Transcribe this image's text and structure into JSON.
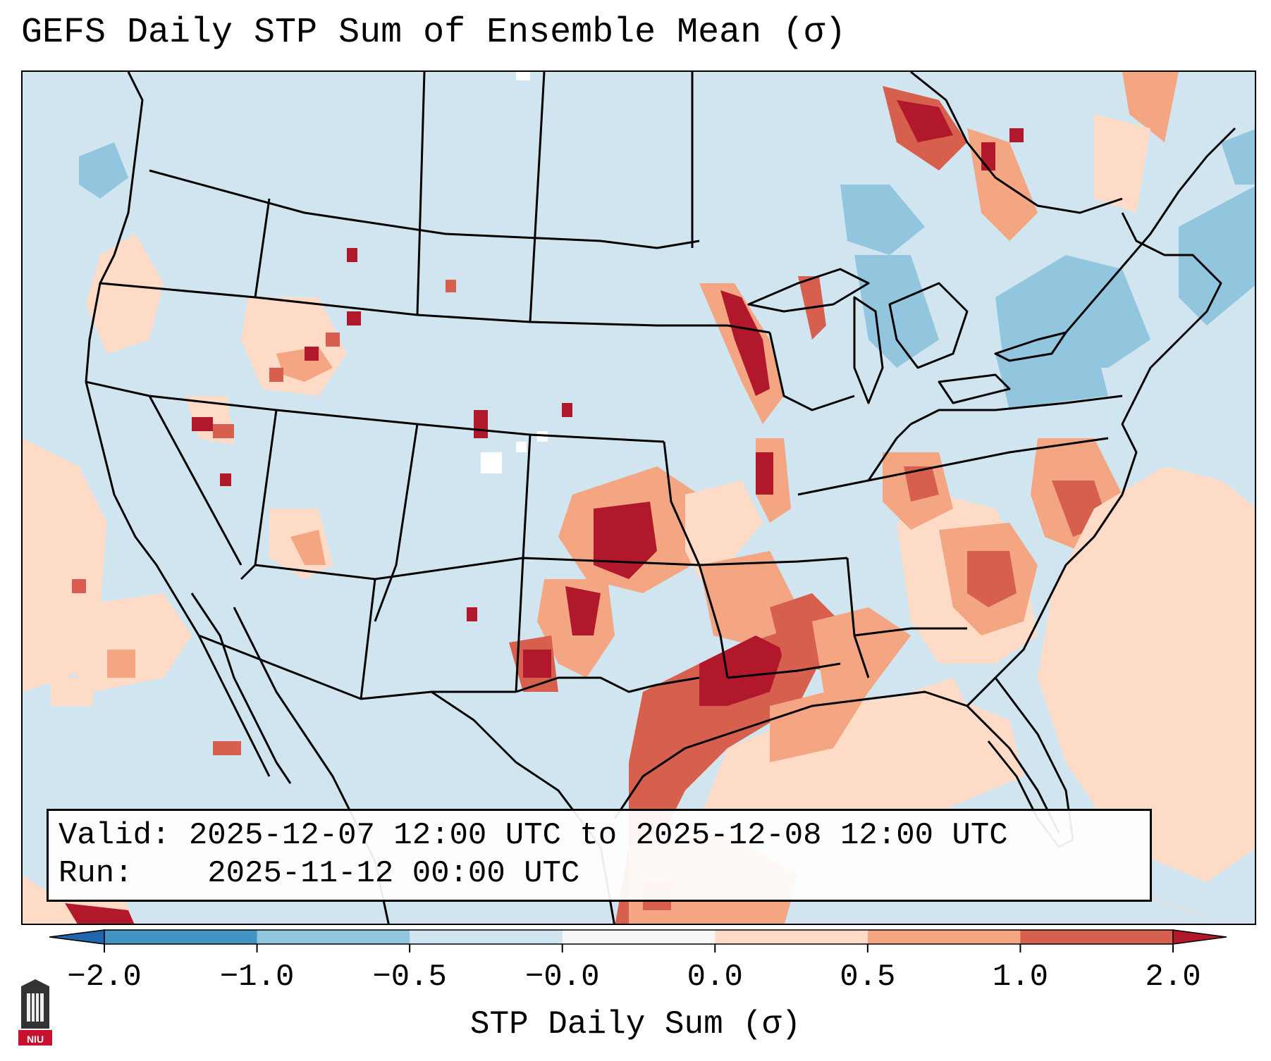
{
  "title": "GEFS Daily STP Sum of Ensemble Mean (σ)",
  "info": {
    "valid_label": "Valid:",
    "valid_value": "2025-12-07 12:00 UTC to 2025-12-08 12:00 UTC",
    "run_label": "Run:",
    "run_value": "2025-11-12 00:00 UTC"
  },
  "colorbar": {
    "title": "STP Daily Sum (σ)",
    "ticks": [
      "−2.0",
      "−1.0",
      "−0.5",
      "−0.0",
      "0.0",
      "0.5",
      "1.0",
      "2.0"
    ],
    "colors": [
      "#4393c3",
      "#92c5de",
      "#d1e5f0",
      "#f7f7f7",
      "#fddbc7",
      "#f4a582",
      "#d6604d"
    ],
    "extend_low": "#2166ac",
    "extend_high": "#b2182b"
  },
  "map": {
    "background_class": "#d1e5f0",
    "regions": [
      {
        "name": "texas-gulf-coast",
        "level": "#d6604d"
      },
      {
        "name": "louisiana-mississippi",
        "level": "#b2182b"
      },
      {
        "name": "oklahoma",
        "level": "#b2182b"
      },
      {
        "name": "southeast",
        "level": "#f4a582"
      },
      {
        "name": "great-lakes",
        "level": "#92c5de"
      },
      {
        "name": "quebec",
        "level": "#b2182b"
      }
    ]
  },
  "logo": {
    "text": "NIU"
  }
}
